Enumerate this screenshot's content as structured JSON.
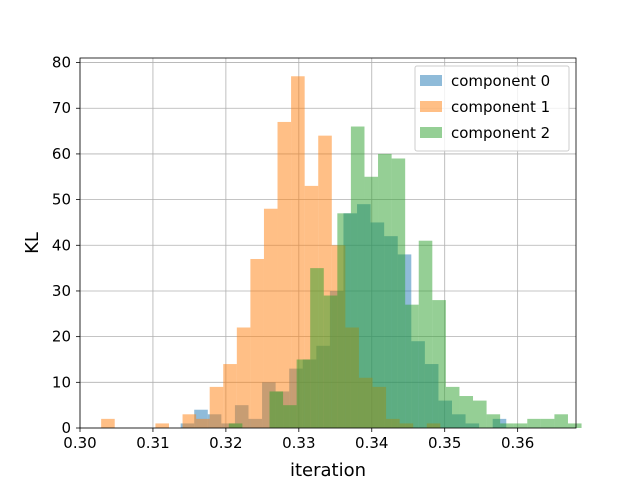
{
  "chart_data": {
    "type": "histogram",
    "title": "",
    "xlabel": "iteration",
    "ylabel": "KL",
    "xlim": [
      0.3,
      0.368
    ],
    "ylim": [
      0,
      81
    ],
    "xticks": [
      "0.30",
      "0.31",
      "0.32",
      "0.33",
      "0.34",
      "0.35",
      "0.36"
    ],
    "xtick_values": [
      0.3,
      0.31,
      0.32,
      0.33,
      0.34,
      0.35,
      0.36
    ],
    "yticks": [
      "0",
      "10",
      "20",
      "30",
      "40",
      "50",
      "60",
      "70",
      "80"
    ],
    "ytick_values": [
      0,
      10,
      20,
      30,
      40,
      50,
      60,
      70,
      80
    ],
    "grid": true,
    "legend_position": "top-right",
    "bin_width": 0.00186,
    "series": [
      {
        "name": "component 0",
        "color": "#1f77b4",
        "alpha": 0.5,
        "bin_start": 0.3138,
        "counts": [
          1,
          4,
          3,
          1,
          5,
          2,
          10,
          8,
          13,
          15,
          18,
          30,
          47,
          49,
          45,
          42,
          38,
          19,
          14,
          6,
          3,
          1,
          0,
          2
        ]
      },
      {
        "name": "component 1",
        "color": "#ff7f0e",
        "alpha": 0.5,
        "bin_start": 0.3029,
        "counts": [
          2,
          0,
          0,
          0,
          1,
          0,
          3,
          2,
          9,
          14,
          22,
          37,
          48,
          67,
          77,
          53,
          64,
          40,
          22,
          11,
          9,
          2,
          1,
          0,
          1
        ]
      },
      {
        "name": "component 2",
        "color": "#2ca02c",
        "alpha": 0.5,
        "bin_start": 0.3204,
        "counts": [
          1,
          0,
          0,
          8,
          5,
          15,
          35,
          29,
          47,
          66,
          55,
          60,
          59,
          27,
          41,
          28,
          9,
          7,
          6,
          3,
          1,
          1,
          2,
          2,
          3,
          1
        ]
      }
    ]
  }
}
